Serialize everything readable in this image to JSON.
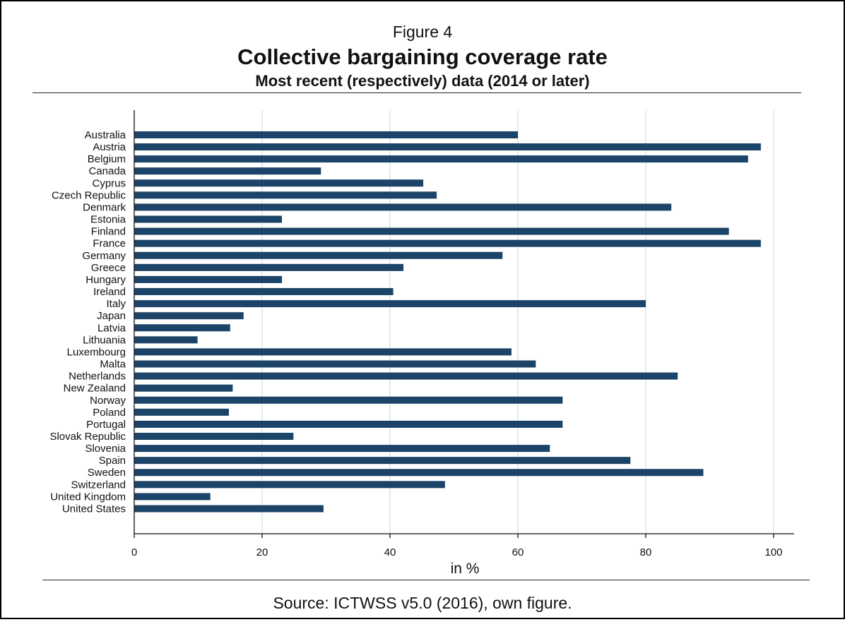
{
  "figure_label": "Figure 4",
  "title": "Collective bargaining coverage rate",
  "subtitle": "Most recent (respectively) data (2014 or later)",
  "source": "Source: ICTWSS v5.0 (2016), own figure.",
  "colors": {
    "bar": "#1c4468",
    "grid": "#e4ecec",
    "axis": "#111111"
  },
  "chart_data": {
    "type": "bar",
    "orientation": "horizontal",
    "xlabel": "in %",
    "ylabel": "",
    "xlim": [
      0,
      100
    ],
    "xticks": [
      0,
      20,
      40,
      60,
      80,
      100
    ],
    "grid": true,
    "categories": [
      "Australia",
      "Austria",
      "Belgium",
      "Canada",
      "Cyprus",
      "Czech Republic",
      "Denmark",
      "Estonia",
      "Finland",
      "France",
      "Germany",
      "Greece",
      "Hungary",
      "Ireland",
      "Italy",
      "Japan",
      "Latvia",
      "Lithuania",
      "Luxembourg",
      "Malta",
      "Netherlands",
      "New Zealand",
      "Norway",
      "Poland",
      "Portugal",
      "Slovak Republic",
      "Slovenia",
      "Spain",
      "Sweden",
      "Switzerland",
      "United Kingdom",
      "United States"
    ],
    "values": [
      60,
      98,
      96,
      29.2,
      45.2,
      47.3,
      84,
      23.1,
      93,
      98,
      57.6,
      42.1,
      23.1,
      40.5,
      80,
      17.1,
      15,
      9.9,
      59,
      62.8,
      85,
      15.4,
      67,
      14.8,
      67,
      24.9,
      65,
      77.6,
      89,
      48.6,
      11.9,
      29.6
    ]
  }
}
